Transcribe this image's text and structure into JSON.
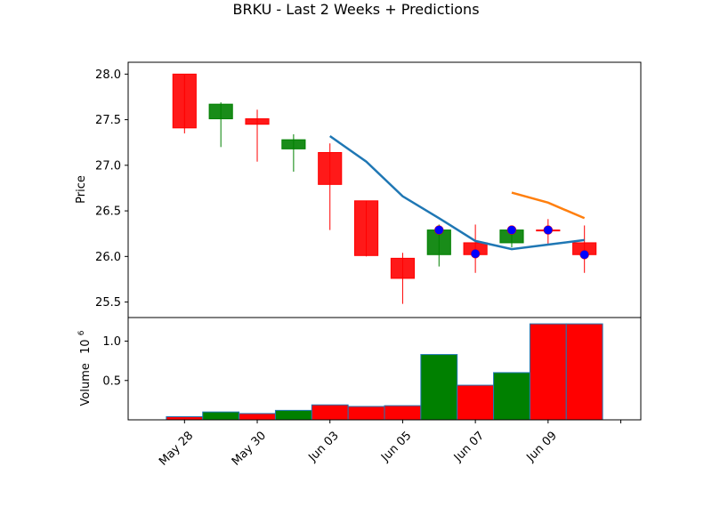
{
  "chart_data": {
    "type": "candlestick",
    "title": "BRKU - Last 2 Weeks + Predictions",
    "price_panel": {
      "ylabel": "Price",
      "yticks": [
        25.5,
        26.0,
        26.5,
        27.0,
        27.5,
        28.0
      ],
      "ylim": [
        25.33,
        28.13
      ],
      "candles": [
        {
          "index": 0,
          "open": 28.0,
          "high": 28.0,
          "low": 27.35,
          "close": 27.41,
          "color": "red"
        },
        {
          "index": 1,
          "open": 27.51,
          "high": 27.69,
          "low": 27.2,
          "close": 27.67,
          "color": "green"
        },
        {
          "index": 2,
          "open": 27.51,
          "high": 27.61,
          "low": 27.04,
          "close": 27.45,
          "color": "red"
        },
        {
          "index": 3,
          "open": 27.18,
          "high": 27.34,
          "low": 26.93,
          "close": 27.28,
          "color": "green"
        },
        {
          "index": 4,
          "open": 27.14,
          "high": 27.24,
          "low": 26.29,
          "close": 26.79,
          "color": "red"
        },
        {
          "index": 5,
          "open": 26.61,
          "high": 26.61,
          "low": 26.0,
          "close": 26.01,
          "color": "red"
        },
        {
          "index": 6,
          "open": 25.98,
          "high": 26.04,
          "low": 25.48,
          "close": 25.76,
          "color": "red"
        },
        {
          "index": 7,
          "open": 26.02,
          "high": 26.35,
          "low": 25.89,
          "close": 26.29,
          "color": "green"
        },
        {
          "index": 8,
          "open": 26.15,
          "high": 26.35,
          "low": 25.82,
          "close": 26.02,
          "color": "red"
        },
        {
          "index": 9,
          "open": 26.15,
          "high": 26.32,
          "low": 26.1,
          "close": 26.29,
          "color": "green"
        },
        {
          "index": 10,
          "open": 26.29,
          "high": 26.41,
          "low": 26.14,
          "close": 26.29,
          "color": "red"
        },
        {
          "index": 11,
          "open": 26.15,
          "high": 26.34,
          "low": 25.82,
          "close": 26.02,
          "color": "red"
        }
      ],
      "markers": [
        {
          "index": 7,
          "value": 26.29
        },
        {
          "index": 8,
          "value": 26.03
        },
        {
          "index": 9,
          "value": 26.29
        },
        {
          "index": 10,
          "value": 26.29
        },
        {
          "index": 11,
          "value": 26.02
        }
      ],
      "lines": [
        {
          "color": "#1f77b4",
          "points": [
            [
              4,
              27.32
            ],
            [
              5,
              27.04
            ],
            [
              6,
              26.66
            ],
            [
              7,
              26.42
            ],
            [
              8,
              26.17
            ],
            [
              9,
              26.08
            ],
            [
              10,
              26.13
            ],
            [
              11,
              26.18
            ]
          ]
        },
        {
          "color": "#ff7f0e",
          "points": [
            [
              9,
              26.7
            ],
            [
              10,
              26.59
            ],
            [
              11,
              26.42
            ]
          ]
        }
      ]
    },
    "volume_panel": {
      "ylabel": "Volume  10^6",
      "ylabel_main": "Volume",
      "ylabel_exp_base": "10",
      "ylabel_exp_power": "6",
      "yticks": [
        0.5,
        1.0
      ],
      "ylim": [
        0,
        1.3
      ],
      "bars": [
        {
          "index": 0,
          "value": 0.04,
          "color": "red"
        },
        {
          "index": 1,
          "value": 0.1,
          "color": "green"
        },
        {
          "index": 2,
          "value": 0.08,
          "color": "red"
        },
        {
          "index": 3,
          "value": 0.12,
          "color": "green"
        },
        {
          "index": 4,
          "value": 0.19,
          "color": "red"
        },
        {
          "index": 5,
          "value": 0.17,
          "color": "red"
        },
        {
          "index": 6,
          "value": 0.18,
          "color": "red"
        },
        {
          "index": 7,
          "value": 0.83,
          "color": "green"
        },
        {
          "index": 8,
          "value": 0.44,
          "color": "red"
        },
        {
          "index": 9,
          "value": 0.6,
          "color": "green"
        },
        {
          "index": 10,
          "value": 1.22,
          "color": "red"
        },
        {
          "index": 11,
          "value": 1.22,
          "color": "red"
        }
      ]
    },
    "x_ticks": [
      {
        "pos": 0,
        "label": "May 28"
      },
      {
        "pos": 2,
        "label": "May 30"
      },
      {
        "pos": 4,
        "label": "Jun 03"
      },
      {
        "pos": 6,
        "label": "Jun 05"
      },
      {
        "pos": 8,
        "label": "Jun 07"
      },
      {
        "pos": 10,
        "label": "Jun 09"
      },
      {
        "pos": 12,
        "label": ""
      }
    ],
    "xlim": [
      -1.55,
      12.55
    ],
    "colors": {
      "up": "#008000",
      "down": "#ff0000",
      "marker": "#0000ff",
      "marker_edge": "#ff0000",
      "line1": "#1f77b4",
      "line2": "#ff7f0e"
    }
  }
}
